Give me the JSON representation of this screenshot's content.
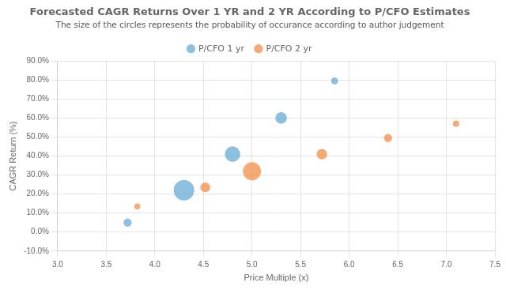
{
  "chart_data": {
    "type": "bubble",
    "title": "Forecasted CAGR Returns Over 1 YR and 2 YR According to P/CFO Estimates",
    "subtitle": "The size of the circles represents the probability of occurance according to author judgement",
    "xlabel": "Price Multiple (x)",
    "ylabel": "CAGR Return (%)",
    "xlim": [
      3,
      7.5
    ],
    "ylim": [
      -0.1,
      0.9
    ],
    "xticks": [
      {
        "value": 3,
        "label": "3.0"
      },
      3.5,
      {
        "value": 4,
        "label": "4.0"
      },
      4.5,
      {
        "value": 5,
        "label": "5.0"
      },
      5.5,
      {
        "value": 6,
        "label": "6.0"
      },
      6.5,
      {
        "value": 7,
        "label": "7.0"
      },
      7.5
    ],
    "yticks": [
      {
        "value": -0.1,
        "label": "-10.0%"
      },
      {
        "value": 0.0,
        "label": "0.0%"
      },
      {
        "value": 0.1,
        "label": "10.0%"
      },
      {
        "value": 0.2,
        "label": "20.0%"
      },
      {
        "value": 0.3,
        "label": "30.0%"
      },
      {
        "value": 0.4,
        "label": "40.0%"
      },
      {
        "value": 0.5,
        "label": "50.0%"
      },
      {
        "value": 0.6,
        "label": "60.0%"
      },
      {
        "value": 0.7,
        "label": "70.0%"
      },
      {
        "value": 0.8,
        "label": "80.0%"
      },
      {
        "value": 0.9,
        "label": "90.0%"
      }
    ],
    "grid": true,
    "legend": "top",
    "series": [
      {
        "name": "P/CFO 1 yr",
        "color": "#6baed6",
        "x": [
          3.72,
          4.3,
          4.8,
          5.3,
          5.85
        ],
        "values": [
          0.05,
          0.22,
          0.41,
          0.6,
          0.795
        ],
        "size": [
          55,
          350,
          200,
          110,
          40
        ]
      },
      {
        "name": "P/CFO 2 yr",
        "color": "#f4914e",
        "x": [
          3.82,
          4.52,
          5.0,
          5.72,
          6.4,
          7.1
        ],
        "values": [
          0.135,
          0.235,
          0.32,
          0.41,
          0.495,
          0.57
        ],
        "size": [
          30,
          80,
          270,
          90,
          55,
          35
        ]
      }
    ]
  }
}
